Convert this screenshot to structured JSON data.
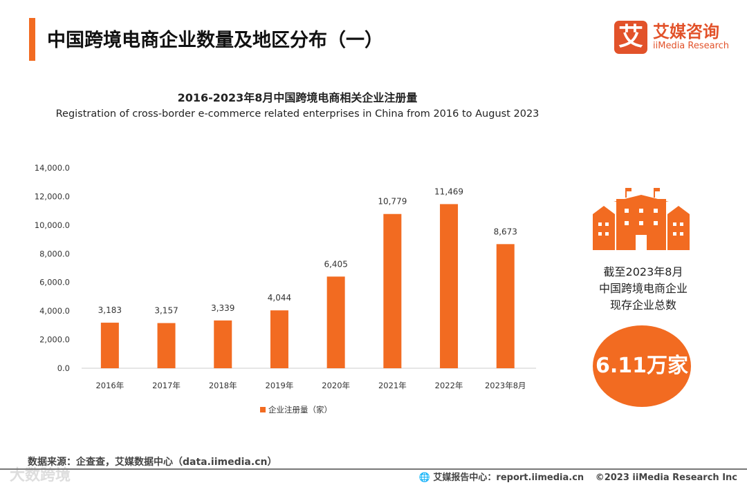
{
  "header": {
    "title": "中国跨境电商企业数量及地区分布（一）",
    "logo_mark": "艾",
    "logo_cn": "艾媒咨询",
    "logo_en": "iiMedia Research"
  },
  "chart_data": {
    "type": "bar",
    "title": "2016-2023年8月中国跨境电商相关企业注册量",
    "subtitle": "Registration of cross-border e-commerce related enterprises in China from 2016 to August 2023",
    "categories": [
      "2016年",
      "2017年",
      "2018年",
      "2019年",
      "2020年",
      "2021年",
      "2022年",
      "2023年8月"
    ],
    "values": [
      3183,
      3157,
      3339,
      4044,
      6405,
      10779,
      11469,
      8673
    ],
    "data_labels": [
      "3,183",
      "3,157",
      "3,339",
      "4,044",
      "6,405",
      "10,779",
      "11,469",
      "8,673"
    ],
    "yticks": [
      "0.0",
      "2,000.0",
      "4,000.0",
      "6,000.0",
      "8,000.0",
      "10,000.0",
      "12,000.0",
      "14,000.0"
    ],
    "ylim": [
      0,
      14000
    ],
    "legend": "企业注册量（家）",
    "legend_position": "bottom",
    "color": "#f26b21"
  },
  "side": {
    "line1": "截至2023年8月",
    "line2": "中国跨境电商企业",
    "line3": "现存企业总数",
    "total": "6.11万家",
    "icon": "building-icon"
  },
  "footer": {
    "source": "数据来源：企查查，艾媒数据中心（data.iimedia.cn）",
    "report": "艾媒报告中心：report.iimedia.cn",
    "copyright": "©2023  iiMedia Research  Inc",
    "watermark": "大数跨境"
  }
}
